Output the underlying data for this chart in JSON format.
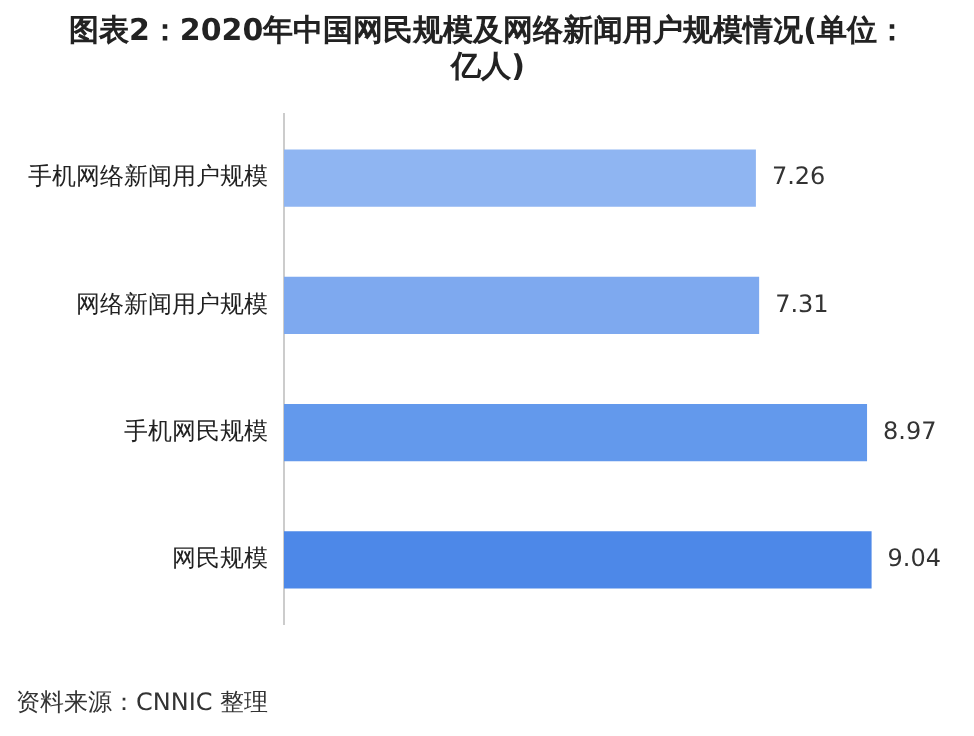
{
  "chart_data": {
    "type": "bar",
    "orientation": "horizontal",
    "title": "图表2：2020年中国网民规模及网络新闻用户规模情况(单位：亿人)",
    "categories": [
      "手机网络新闻用户规模",
      "网络新闻用户规模",
      "手机网民规模",
      "网民规模"
    ],
    "values": [
      7.26,
      7.31,
      8.97,
      9.04
    ],
    "colors": [
      "#8fb5f2",
      "#7ea9ef",
      "#6399ec",
      "#4d88e8"
    ],
    "data_labels": true,
    "legend": false,
    "annotations": [
      "资料来源：CNNIC 整理"
    ]
  }
}
